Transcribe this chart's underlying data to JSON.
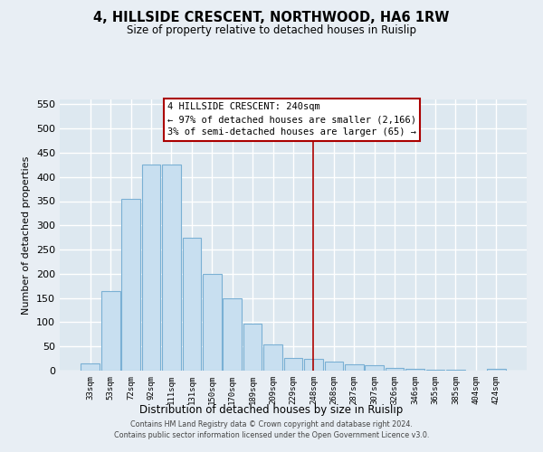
{
  "title": "4, HILLSIDE CRESCENT, NORTHWOOD, HA6 1RW",
  "subtitle": "Size of property relative to detached houses in Ruislip",
  "xlabel": "Distribution of detached houses by size in Ruislip",
  "ylabel": "Number of detached properties",
  "bar_labels": [
    "33sqm",
    "53sqm",
    "72sqm",
    "92sqm",
    "111sqm",
    "131sqm",
    "150sqm",
    "170sqm",
    "189sqm",
    "209sqm",
    "229sqm",
    "248sqm",
    "268sqm",
    "287sqm",
    "307sqm",
    "326sqm",
    "346sqm",
    "365sqm",
    "385sqm",
    "404sqm",
    "424sqm"
  ],
  "bar_values": [
    15,
    165,
    355,
    425,
    425,
    275,
    200,
    150,
    97,
    55,
    27,
    25,
    18,
    13,
    11,
    5,
    3,
    2,
    1,
    0,
    3
  ],
  "bar_color": "#c8dff0",
  "bar_edge_color": "#7ab0d4",
  "vline_x": 11.0,
  "vline_color": "#aa0000",
  "annotation_title": "4 HILLSIDE CRESCENT: 240sqm",
  "annotation_line1": "← 97% of detached houses are smaller (2,166)",
  "annotation_line2": "3% of semi-detached houses are larger (65) →",
  "annotation_box_facecolor": "#ffffff",
  "annotation_box_edgecolor": "#aa0000",
  "ylim": [
    0,
    560
  ],
  "yticks": [
    0,
    50,
    100,
    150,
    200,
    250,
    300,
    350,
    400,
    450,
    500,
    550
  ],
  "footer_line1": "Contains HM Land Registry data © Crown copyright and database right 2024.",
  "footer_line2": "Contains public sector information licensed under the Open Government Licence v3.0.",
  "bg_color": "#e8eef4",
  "grid_color": "#d0dae4",
  "plot_bg_color": "#dde8f0"
}
